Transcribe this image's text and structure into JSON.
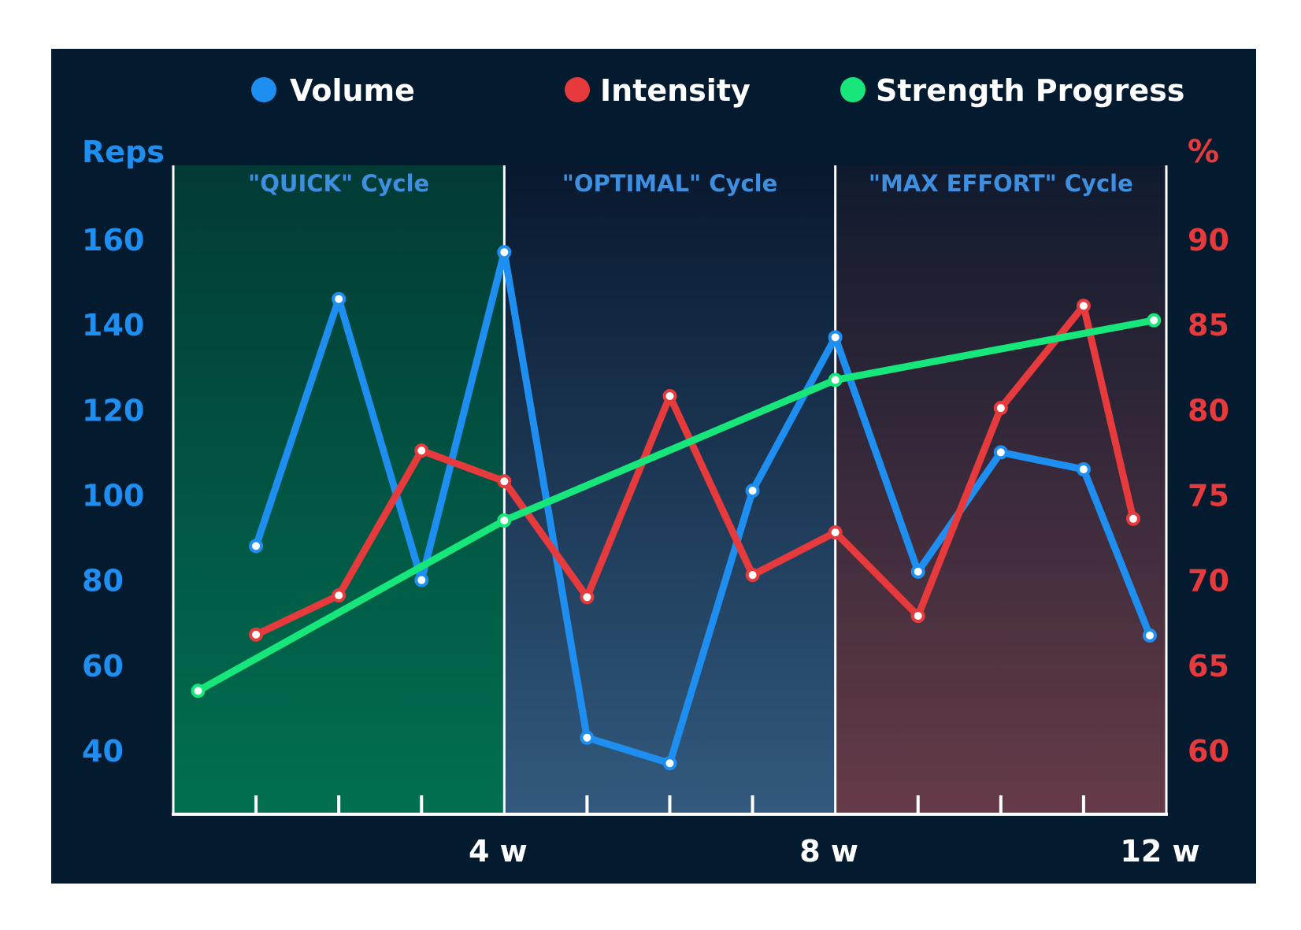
{
  "chart_data": {
    "type": "line",
    "legend": {
      "placement": "top",
      "items": [
        {
          "label": "Volume",
          "color": "#1e8ff0"
        },
        {
          "label": "Intensity",
          "color": "#e63a3c"
        },
        {
          "label": "Strength Progress",
          "color": "#17e67a"
        }
      ]
    },
    "y_left": {
      "title": "Reps",
      "ticks": [
        "160",
        "140",
        "120",
        "100",
        "80",
        "60",
        "40"
      ],
      "tick_values": [
        160,
        140,
        120,
        100,
        80,
        60,
        40
      ],
      "color": "#1e8ff0"
    },
    "y_right": {
      "title": "%",
      "ticks": [
        "90",
        "85",
        "80",
        "75",
        "70",
        "65",
        "60"
      ],
      "tick_values": [
        90,
        85,
        80,
        75,
        70,
        65,
        60
      ],
      "color": "#e63a3c"
    },
    "x_axis": {
      "min": 0,
      "max": 12,
      "labeled_ticks": [
        {
          "value": 4,
          "label": "4 w"
        },
        {
          "value": 8,
          "label": "8 w"
        },
        {
          "value": 12,
          "label": "12 w"
        }
      ],
      "minor_ticks": [
        1,
        2,
        3,
        5,
        6,
        7,
        9,
        10,
        11
      ]
    },
    "cycles": [
      {
        "label": "\"QUICK\" Cycle",
        "start": 0,
        "end": 4,
        "color_top": "#023a35",
        "color_bottom": "#017050"
      },
      {
        "label": "\"OPTIMAL\" Cycle",
        "start": 4,
        "end": 8,
        "color_top": "#08182e",
        "color_bottom": "#325a7e"
      },
      {
        "label": "\"MAX EFFORT\" Cycle",
        "start": 8,
        "end": 12,
        "color_top": "#0f1a2e",
        "color_bottom": "#663b48"
      }
    ],
    "series": [
      {
        "name": "Volume",
        "axis": "left",
        "color": "#1e8ff0",
        "x": [
          1,
          2,
          3,
          4,
          5,
          6,
          7,
          8,
          9,
          10,
          11,
          11.8
        ],
        "y": [
          88,
          146,
          80,
          157,
          43,
          37,
          101,
          137,
          82,
          110,
          106,
          67
        ]
      },
      {
        "name": "Intensity",
        "axis": "right",
        "color": "#e63a3c",
        "x": [
          1,
          2,
          3,
          4,
          5,
          6,
          7,
          8,
          9,
          10,
          11,
          11.6
        ],
        "y": [
          66.8,
          69.1,
          77.6,
          75.8,
          69.0,
          80.8,
          70.3,
          72.8,
          67.9,
          80.1,
          86.1,
          73.6
        ]
      },
      {
        "name": "Strength Progress",
        "axis": "left",
        "color": "#17e67a",
        "x": [
          0.3,
          4,
          8,
          11.85
        ],
        "y": [
          54,
          94,
          127,
          141
        ]
      }
    ]
  }
}
